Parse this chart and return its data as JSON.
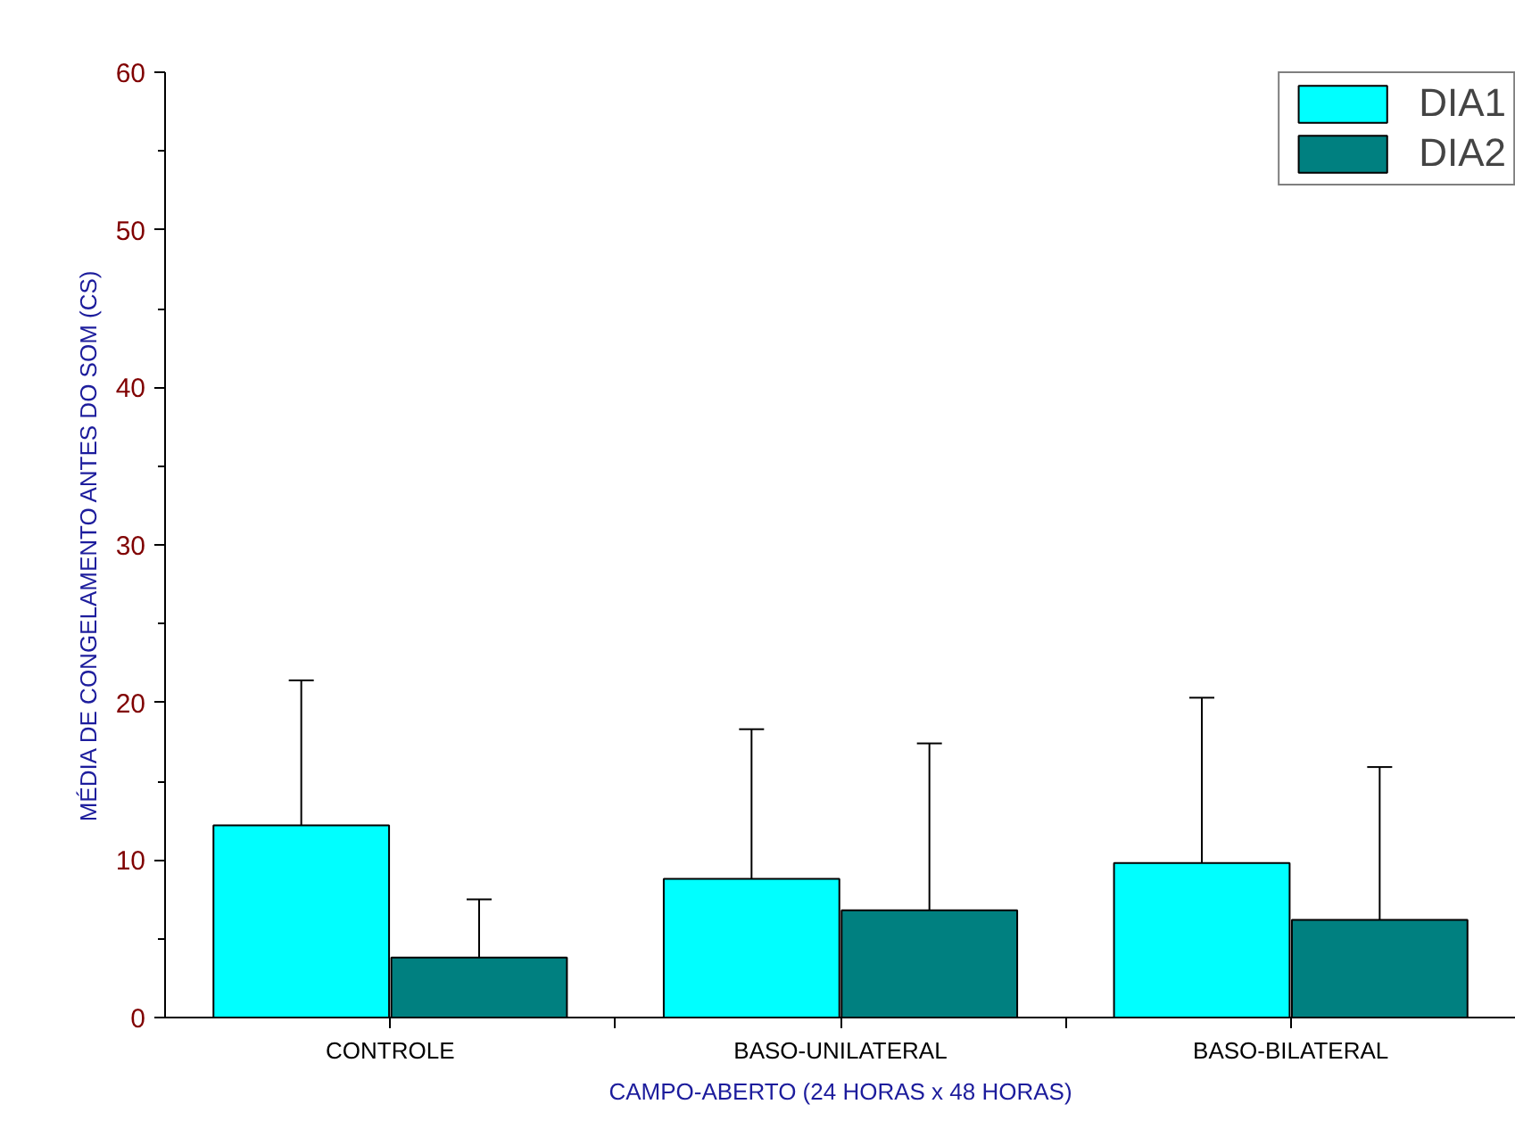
{
  "chart_data": {
    "type": "bar",
    "xlabel": "CAMPO-ABERTO (24 HORAS x 48 HORAS)",
    "ylabel": "MÉDIA DE CONGELAMENTO ANTES DO SOM (CS)",
    "categories": [
      "CONTROLE",
      "BASO-UNILATERAL",
      "BASO-BILATERAL"
    ],
    "series": [
      {
        "name": "DIA1",
        "color": "#00ffff",
        "values": [
          12.2,
          8.8,
          9.8
        ],
        "errors": [
          [
            12.2,
            21.4
          ],
          [
            8.8,
            18.3
          ],
          [
            9.8,
            20.3
          ]
        ]
      },
      {
        "name": "DIA2",
        "color": "#008080",
        "values": [
          3.8,
          6.8,
          6.2
        ],
        "errors": [
          [
            3.8,
            7.5
          ],
          [
            6.8,
            17.4
          ],
          [
            6.2,
            15.9
          ]
        ]
      }
    ],
    "ylim": [
      0,
      60
    ],
    "yticks": [
      0,
      10,
      20,
      30,
      40,
      50,
      60
    ],
    "grid": false,
    "legend": "top right"
  }
}
